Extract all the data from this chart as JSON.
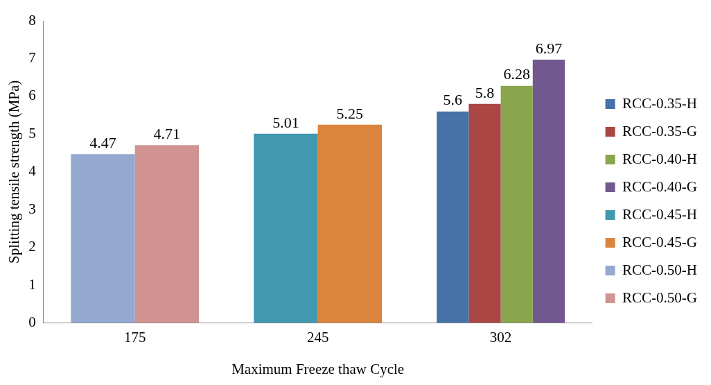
{
  "chart_data": {
    "type": "bar",
    "xlabel": "Maximum Freeze thaw Cycle",
    "ylabel": "Splitting tensile strength (MPa)",
    "categories": [
      "175",
      "245",
      "302"
    ],
    "series": [
      {
        "name": "RCC-0.35-H",
        "color": "#4572a7",
        "values": [
          null,
          null,
          5.6
        ]
      },
      {
        "name": "RCC-0.35-G",
        "color": "#aa4643",
        "values": [
          null,
          null,
          5.8
        ]
      },
      {
        "name": "RCC-0.40-H",
        "color": "#89a54e",
        "values": [
          null,
          null,
          6.28
        ]
      },
      {
        "name": "RCC-0.40-G",
        "color": "#71588f",
        "values": [
          null,
          null,
          6.97
        ]
      },
      {
        "name": "RCC-0.45-H",
        "color": "#4198af",
        "values": [
          null,
          5.01,
          null
        ]
      },
      {
        "name": "RCC-0.45-G",
        "color": "#db843d",
        "values": [
          null,
          5.25,
          null
        ]
      },
      {
        "name": "RCC-0.50-H",
        "color": "#93a9cf",
        "values": [
          4.47,
          null,
          null
        ]
      },
      {
        "name": "RCC-0.50-G",
        "color": "#d19392",
        "values": [
          4.71,
          null,
          null
        ]
      }
    ],
    "ylim": [
      0,
      8
    ],
    "yticks": [
      0,
      1,
      2,
      3,
      4,
      5,
      6,
      7,
      8
    ],
    "grid": false,
    "legend": "right",
    "data_labels": true
  }
}
